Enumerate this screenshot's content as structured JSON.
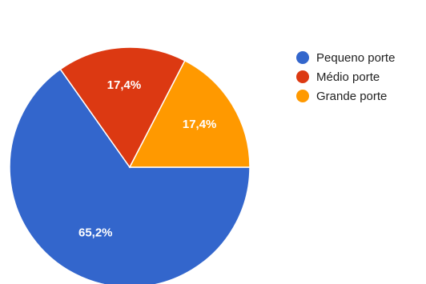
{
  "chart_data": {
    "type": "pie",
    "categories": [
      "Pequeno porte",
      "Médio porte",
      "Grande porte"
    ],
    "values": [
      65.2,
      17.4,
      17.4
    ],
    "value_labels": [
      "65,2%",
      "17,4%",
      "17,4%"
    ],
    "colors": [
      "#3366cc",
      "#dc3912",
      "#ff9900"
    ],
    "title": "",
    "legend_position": "right"
  }
}
